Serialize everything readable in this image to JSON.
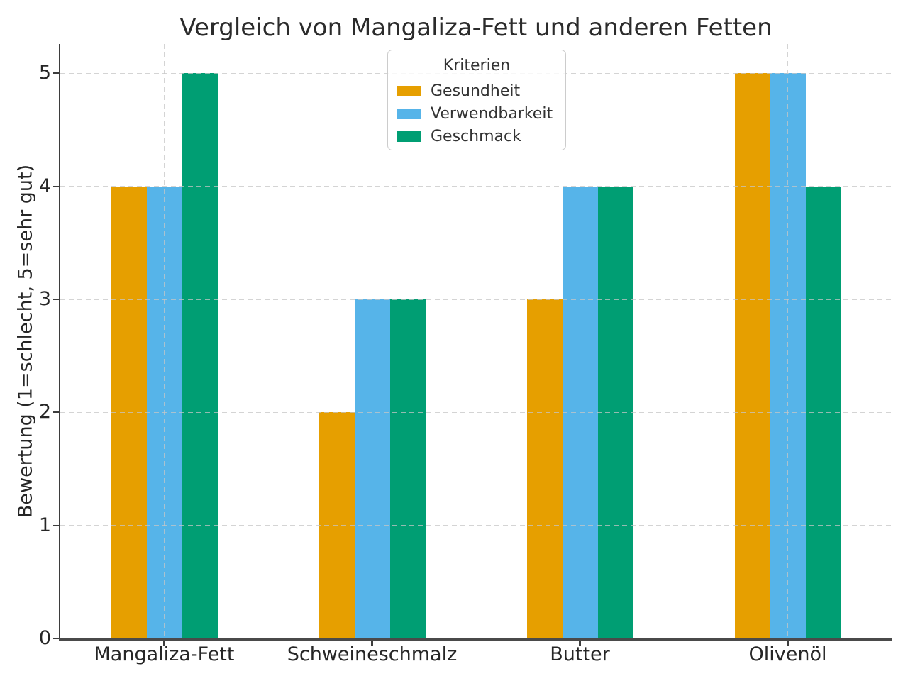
{
  "chart_data": {
    "type": "bar",
    "title": "Vergleich von Mangaliza-Fett und anderen Fetten",
    "categories": [
      "Mangaliza-Fett",
      "Schweineschmalz",
      "Butter",
      "Olivenöl"
    ],
    "series": [
      {
        "name": "Gesundheit",
        "color": "#E69F00",
        "values": [
          4,
          2,
          3,
          5
        ]
      },
      {
        "name": "Verwendbarkeit",
        "color": "#56B4E9",
        "values": [
          4,
          3,
          4,
          5
        ]
      },
      {
        "name": "Geschmack",
        "color": "#009E73",
        "values": [
          5,
          3,
          4,
          4
        ]
      }
    ],
    "xlabel": "",
    "ylabel": "Bewertung (1=schlecht, 5=sehr gut)",
    "ylim": [
      0,
      5.26
    ],
    "yticks": [
      0,
      1,
      2,
      3,
      4,
      5
    ],
    "legend_title": "Kriterien",
    "legend_position": "upper center",
    "grid": true,
    "grid_style": "dashed",
    "background_color": "#ffffff",
    "text_color": "#262626"
  }
}
